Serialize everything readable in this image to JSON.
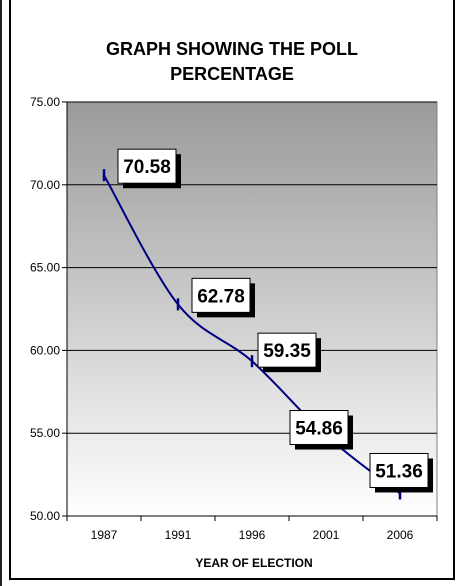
{
  "chart_data": {
    "type": "line",
    "title_lines": [
      "GRAPH SHOWING THE POLL",
      "PERCENTAGE"
    ],
    "xlabel": "YEAR OF ELECTION",
    "ylabel": "",
    "categories": [
      "1987",
      "1991",
      "1996",
      "2001",
      "2006"
    ],
    "values": [
      70.58,
      62.78,
      59.35,
      54.86,
      51.36
    ],
    "data_labels": [
      "70.58",
      "62.78",
      "59.35",
      "54.86",
      "51.36"
    ],
    "ylim": [
      50,
      75
    ],
    "y_ticks": [
      "50.00",
      "55.00",
      "60.00",
      "65.00",
      "70.00",
      "75.00"
    ],
    "grid": true,
    "legend": "none",
    "line_color": "#000080",
    "plot_gradient": [
      "#9a9a9a",
      "#ffffff"
    ]
  }
}
